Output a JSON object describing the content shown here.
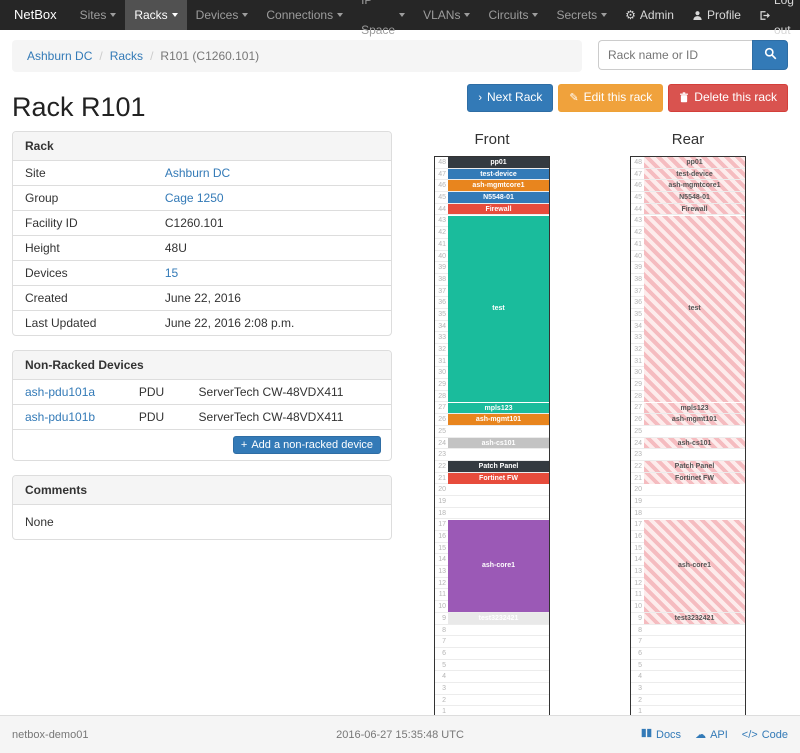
{
  "navbar": {
    "brand": "NetBox",
    "items": [
      {
        "label": "Sites"
      },
      {
        "label": "Racks",
        "active": true
      },
      {
        "label": "Devices"
      },
      {
        "label": "Connections"
      },
      {
        "label": "IP Space"
      },
      {
        "label": "VLANs"
      },
      {
        "label": "Circuits"
      },
      {
        "label": "Secrets"
      }
    ],
    "admin_label": "Admin",
    "profile_label": "Profile",
    "logout_label": "Log out"
  },
  "breadcrumb": {
    "items": [
      {
        "label": "Ashburn DC",
        "link": true
      },
      {
        "label": "Racks",
        "link": true
      },
      {
        "label": "R101 (C1260.101)",
        "link": false
      }
    ]
  },
  "search": {
    "placeholder": "Rack name or ID"
  },
  "actions": {
    "next": "Next Rack",
    "edit": "Edit this rack",
    "delete": "Delete this rack"
  },
  "page_title": "Rack R101",
  "rack_panel": {
    "title": "Rack",
    "rows": [
      {
        "label": "Site",
        "value": "Ashburn DC",
        "link": true
      },
      {
        "label": "Group",
        "value": "Cage 1250",
        "link": true
      },
      {
        "label": "Facility ID",
        "value": "C1260.101"
      },
      {
        "label": "Height",
        "value": "48U"
      },
      {
        "label": "Devices",
        "value": "15",
        "link": true
      },
      {
        "label": "Created",
        "value": "June 22, 2016"
      },
      {
        "label": "Last Updated",
        "value": "June 22, 2016 2:08 p.m."
      }
    ]
  },
  "nonracked_panel": {
    "title": "Non-Racked Devices",
    "rows": [
      {
        "name": "ash-pdu101a",
        "role": "PDU",
        "type": "ServerTech CW-48VDX411"
      },
      {
        "name": "ash-pdu101b",
        "role": "PDU",
        "type": "ServerTech CW-48VDX411"
      }
    ],
    "add_button": "Add a non-racked device"
  },
  "comments_panel": {
    "title": "Comments",
    "body": "None"
  },
  "elevations": {
    "front_title": "Front",
    "rear_title": "Rear",
    "units_total": 48,
    "rear_hatch": {
      "stripe": "#f5bcc0",
      "bg": "#fdecec"
    },
    "devices": [
      {
        "name": "pp01",
        "top_u": 48,
        "height": 1,
        "color": "#343a40"
      },
      {
        "name": "test-device",
        "top_u": 47,
        "height": 1,
        "color": "#337ab7"
      },
      {
        "name": "ash-mgmtcore1",
        "top_u": 46,
        "height": 1,
        "color": "#e8851e"
      },
      {
        "name": "N5548-01",
        "top_u": 45,
        "height": 1,
        "color": "#337ab7"
      },
      {
        "name": "Firewall",
        "top_u": 44,
        "height": 1,
        "color": "#e74c3c"
      },
      {
        "name": "test",
        "top_u": 43,
        "height": 16,
        "color": "#1abc9c"
      },
      {
        "name": "mpls123",
        "top_u": 27,
        "height": 1,
        "color": "#1abc9c"
      },
      {
        "name": "ash-mgmt101",
        "top_u": 26,
        "height": 1,
        "color": "#e8851e"
      },
      {
        "name": "ash-cs101",
        "top_u": 24,
        "height": 1,
        "color": "#c3c3c3"
      },
      {
        "name": "Patch Panel",
        "top_u": 22,
        "height": 1,
        "color": "#343a40"
      },
      {
        "name": "Fortinet FW",
        "top_u": 21,
        "height": 1,
        "color": "#e74c3c"
      },
      {
        "name": "ash-core1",
        "top_u": 17,
        "height": 8,
        "color": "#9b59b6"
      },
      {
        "name": "test3232421",
        "top_u": 9,
        "height": 1,
        "color": "#e9e9e9"
      }
    ]
  },
  "footer": {
    "hostname": "netbox-demo01",
    "timestamp": "2016-06-27 15:35:48 UTC",
    "docs_label": "Docs",
    "api_label": "API",
    "code_label": "Code"
  }
}
